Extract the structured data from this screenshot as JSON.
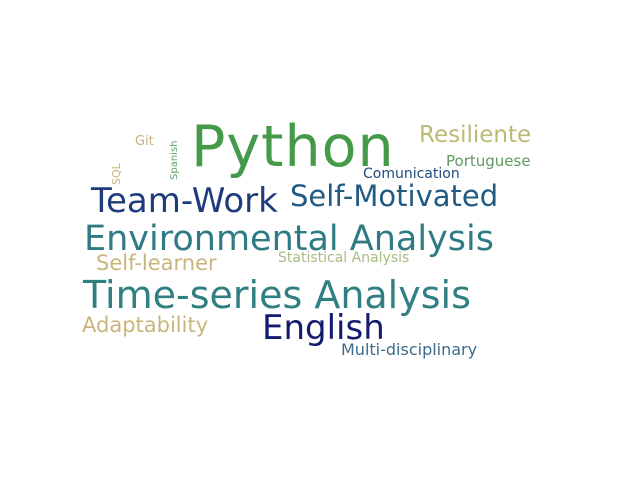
{
  "word_cloud": {
    "words": [
      {
        "text": "Python",
        "color": "#449a49"
      },
      {
        "text": "Resiliente",
        "color": "#b9bb75"
      },
      {
        "text": "Git",
        "color": "#c8b37a"
      },
      {
        "text": "Spanish",
        "color": "#5ea166"
      },
      {
        "text": "SQL",
        "color": "#c8b37a"
      },
      {
        "text": "Portuguese",
        "color": "#5f9a5e"
      },
      {
        "text": "Comunication",
        "color": "#1f4a7a"
      },
      {
        "text": "Team-Work",
        "color": "#1f3c7a"
      },
      {
        "text": "Self-Motivated",
        "color": "#215a82"
      },
      {
        "text": "Environmental Analysis",
        "color": "#2f7b83"
      },
      {
        "text": "Self-learner",
        "color": "#c9b47b"
      },
      {
        "text": "Statistical Analysis",
        "color": "#a8bb82"
      },
      {
        "text": "Time-series Analysis",
        "color": "#2f7f83"
      },
      {
        "text": "Adaptability",
        "color": "#c9b47b"
      },
      {
        "text": "English",
        "color": "#141a6e"
      },
      {
        "text": "Multi-disciplinary",
        "color": "#3e6b8a"
      }
    ]
  }
}
